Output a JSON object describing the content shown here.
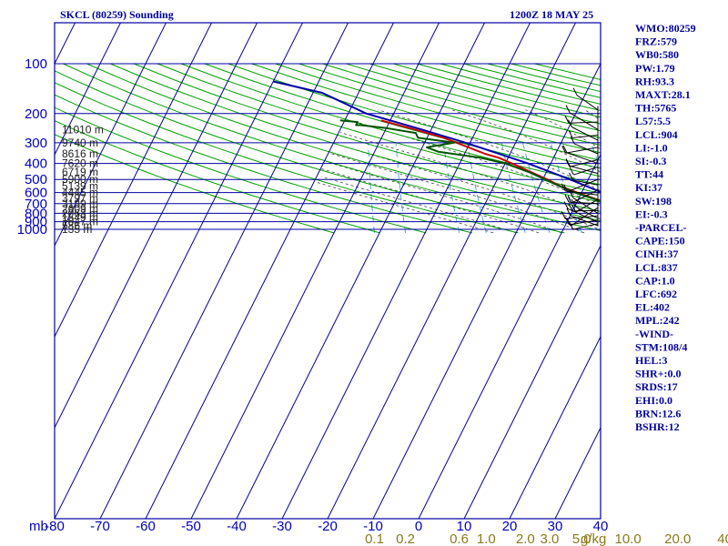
{
  "header": {
    "station": "SKCL (80259) Sounding",
    "time": "1200Z 18 MAY 25"
  },
  "chart_data": {
    "type": "line",
    "title": "SKCL (80259) Sounding",
    "time_label": "1200Z 18 MAY 25",
    "x_unit_label": "mb",
    "temp_ticks": [
      -80,
      -70,
      -60,
      -50,
      -40,
      -30,
      -20,
      -10,
      0,
      10,
      20,
      30,
      40
    ],
    "temp_tick_labels": [
      "-80",
      "-70",
      "-60",
      "-50",
      "-40",
      "-30",
      "-20",
      "-10",
      "0",
      "10",
      "20",
      "30",
      "40"
    ],
    "pressure_ticks": [
      100,
      200,
      300,
      400,
      500,
      600,
      700,
      800,
      900,
      1000
    ],
    "pressure_tick_labels": [
      "100",
      "200",
      "300",
      "400",
      "500",
      "600",
      "700",
      "800",
      "900",
      "1000"
    ],
    "xlim": [
      -80,
      40
    ],
    "ylim": [
      1050,
      100
    ],
    "y_scale": "log",
    "height_labels": [
      {
        "p": 250,
        "label": "11010 m"
      },
      {
        "p": 300,
        "label": "9740 m"
      },
      {
        "p": 350,
        "label": "8616 m"
      },
      {
        "p": 400,
        "label": "7620 m"
      },
      {
        "p": 450,
        "label": "6719 m"
      },
      {
        "p": 500,
        "label": "5900 m"
      },
      {
        "p": 550,
        "label": "5139 m"
      },
      {
        "p": 600,
        "label": "4445 m"
      },
      {
        "p": 650,
        "label": "3797 m"
      },
      {
        "p": 700,
        "label": "3189 m"
      },
      {
        "p": 750,
        "label": "2609 m"
      },
      {
        "p": 800,
        "label": "2063 m"
      },
      {
        "p": 850,
        "label": "1549 m"
      },
      {
        "p": 900,
        "label": "1047 m"
      },
      {
        "p": 950,
        "label": "586 m"
      },
      {
        "p": 1000,
        "label": "135 m"
      }
    ],
    "mixing_ratio_labels": [
      {
        "w": 0.1,
        "label": "0.1"
      },
      {
        "w": 0.2,
        "label": "0.2"
      },
      {
        "w": 0.6,
        "label": "0.6"
      },
      {
        "w": 1.0,
        "label": "1.0"
      },
      {
        "w": 2.0,
        "label": "2.0"
      },
      {
        "w": 3.0,
        "label": "3.0"
      },
      {
        "w": 5.0,
        "label": "5.0"
      },
      {
        "w": 10.0,
        "label": "10.0"
      },
      {
        "w": 20.0,
        "label": "20.0"
      },
      {
        "w": 40.0,
        "label": "40.0"
      }
    ],
    "mixing_ratio_unit": "g/kg",
    "series": [
      {
        "key": "temperature",
        "color": "#cc0000",
        "points": [
          {
            "p": 905,
            "t": 23.0
          },
          {
            "p": 890,
            "t": 21.0
          },
          {
            "p": 850,
            "t": 17.0
          },
          {
            "p": 800,
            "t": 14.0
          },
          {
            "p": 750,
            "t": 11.0
          },
          {
            "p": 700,
            "t": 7.5
          },
          {
            "p": 650,
            "t": 3.3
          },
          {
            "p": 600,
            "t": -1.0
          },
          {
            "p": 550,
            "t": -5.3
          },
          {
            "p": 500,
            "t": -9.0
          },
          {
            "p": 450,
            "t": -13.5
          },
          {
            "p": 400,
            "t": -18.5
          },
          {
            "p": 370,
            "t": -22.0
          },
          {
            "p": 350,
            "t": -25.5
          },
          {
            "p": 300,
            "t": -33.0
          },
          {
            "p": 280,
            "t": -36.3
          },
          {
            "p": 250,
            "t": -43.5
          },
          {
            "p": 220,
            "t": -52.0
          }
        ]
      },
      {
        "key": "dewpoint",
        "color": "#005500",
        "points": [
          {
            "p": 905,
            "t": 22.0
          },
          {
            "p": 880,
            "t": 20.0
          },
          {
            "p": 850,
            "t": 16.0
          },
          {
            "p": 800,
            "t": 13.0
          },
          {
            "p": 750,
            "t": 10.5
          },
          {
            "p": 700,
            "t": 7.0
          },
          {
            "p": 650,
            "t": 3.0
          },
          {
            "p": 600,
            "t": -1.5
          },
          {
            "p": 550,
            "t": -5.5
          },
          {
            "p": 500,
            "t": -9.5
          },
          {
            "p": 450,
            "t": -14.0
          },
          {
            "p": 400,
            "t": -20.0
          },
          {
            "p": 370,
            "t": -26.0
          },
          {
            "p": 340,
            "t": -36.0
          },
          {
            "p": 320,
            "t": -39.0
          },
          {
            "p": 300,
            "t": -33.5
          },
          {
            "p": 280,
            "t": -42.0
          },
          {
            "p": 262,
            "t": -43.0
          },
          {
            "p": 245,
            "t": -50.0
          },
          {
            "p": 235,
            "t": -56.0
          },
          {
            "p": 235,
            "t": -57.0
          },
          {
            "p": 225,
            "t": -57.0
          },
          {
            "p": 220,
            "t": -61.0
          }
        ]
      },
      {
        "key": "parcel",
        "color": "#0000aa",
        "points": [
          {
            "p": 905,
            "t": 23.0
          },
          {
            "p": 850,
            "t": 20.0
          },
          {
            "p": 800,
            "t": 17.5
          },
          {
            "p": 700,
            "t": 11.5
          },
          {
            "p": 600,
            "t": 4.5
          },
          {
            "p": 500,
            "t": -4.0
          },
          {
            "p": 400,
            "t": -15.0
          },
          {
            "p": 300,
            "t": -31.0
          },
          {
            "p": 250,
            "t": -42.0
          },
          {
            "p": 200,
            "t": -56.0
          },
          {
            "p": 150,
            "t": -68.0
          },
          {
            "p": 128,
            "t": -80.0
          }
        ]
      }
    ]
  },
  "wind_barbs": [
    {
      "p": 190
    },
    {
      "p": 225
    },
    {
      "p": 250
    },
    {
      "p": 270
    },
    {
      "p": 290
    },
    {
      "p": 320
    },
    {
      "p": 350
    },
    {
      "p": 380
    },
    {
      "p": 400
    },
    {
      "p": 420
    },
    {
      "p": 460
    },
    {
      "p": 500
    },
    {
      "p": 540
    },
    {
      "p": 580
    },
    {
      "p": 620
    },
    {
      "p": 660
    },
    {
      "p": 700
    },
    {
      "p": 740
    },
    {
      "p": 770
    },
    {
      "p": 800
    },
    {
      "p": 830
    },
    {
      "p": 860
    },
    {
      "p": 880
    },
    {
      "p": 905
    },
    {
      "p": 925
    },
    {
      "p": 950
    }
  ],
  "indices": [
    "WMO:80259",
    "FRZ:579",
    "WB0:580",
    "PW:1.79",
    "RH:93.3",
    "MAXT:28.1",
    "TH:5765",
    "L57:5.5",
    "LCL:904",
    "LI:-1.0",
    "SI:-0.3",
    "TT:44",
    "KI:37",
    "SW:198",
    "EI:-0.3",
    "-PARCEL-",
    "CAPE:150",
    "CINH:37",
    "LCL:837",
    "CAP:1.0",
    "LFC:692",
    "EL:402",
    "MPL:242",
    "-WIND-",
    "STM:108/4",
    "HEL:3",
    "SHR+:0.0",
    "SRDS:17",
    "EHI:0.0",
    "BRN:12.6",
    "BSHR:12"
  ]
}
